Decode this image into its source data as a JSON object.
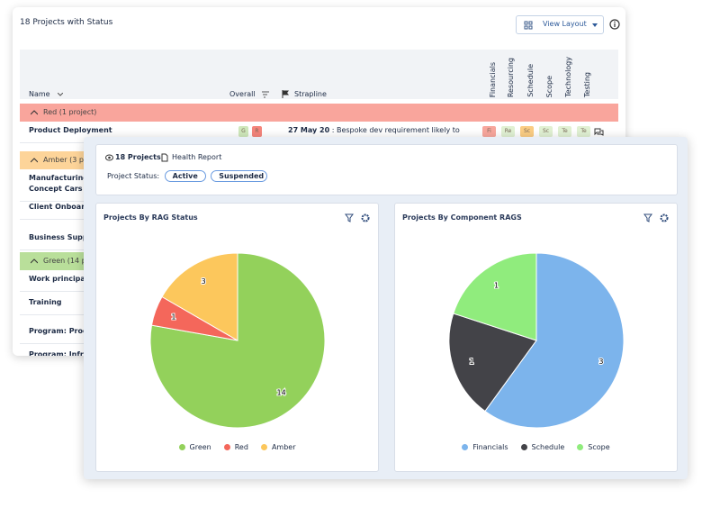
{
  "list": {
    "title": "18 Projects with Status",
    "button": "View Layout",
    "columns": {
      "name": "Name",
      "overall": "Overall",
      "strapline": "Strapline",
      "components": [
        "Financials",
        "Resourcing",
        "Schedule",
        "Scope",
        "Technology",
        "Testing"
      ]
    },
    "groups": [
      {
        "label": "Red (1 project)",
        "color": "#f9a59c",
        "rows": [
          {
            "lines": [
              "Product Deployment"
            ],
            "overall": [
              {
                "text": "G",
                "color": "#cfe8bb"
              },
              {
                "text": "R",
                "color": "#f5857b"
              }
            ],
            "date": "27 May 20",
            "strapline": ": Bespoke dev requirement likely to",
            "components": [
              {
                "text": "Fi",
                "color": "#f8a79d"
              },
              {
                "text": "Re",
                "color": "#e1f1d3"
              },
              {
                "text": "Sc",
                "color": "#fbcd84"
              },
              {
                "text": "Sc",
                "color": "#e1f1d3"
              },
              {
                "text": "Te",
                "color": "#e1f1d3"
              },
              {
                "text": "Te",
                "color": "#e1f1d3"
              }
            ]
          }
        ]
      },
      {
        "label": "Amber (3 p",
        "color": "#fdd499",
        "rows": [
          {
            "lines": [
              "Manufacturing:",
              "Concept Cars"
            ]
          },
          {
            "lines": [
              "Client Onboard"
            ]
          },
          {
            "lines": [
              "Business Supp"
            ]
          }
        ]
      },
      {
        "label": "Green (14 p",
        "color": "#b9df9a",
        "rows": [
          {
            "lines": [
              "Work principals"
            ]
          },
          {
            "lines": [
              "Training"
            ]
          },
          {
            "lines": [
              "Program: Produ"
            ]
          },
          {
            "lines": [
              "Program: Infra"
            ]
          }
        ]
      }
    ]
  },
  "report": {
    "tabs": [
      "18 Projects",
      "Health Report"
    ],
    "status_label": "Project Status:",
    "status_options": [
      "Active",
      "Suspended"
    ]
  },
  "chart_data": [
    {
      "type": "pie",
      "title": "Projects By RAG Status",
      "categories": [
        "Green",
        "Red",
        "Amber"
      ],
      "values": [
        14,
        1,
        3
      ],
      "colors": [
        "#93d15b",
        "#f4675b",
        "#fcc75c"
      ]
    },
    {
      "type": "pie",
      "title": "Projects By Component RAGS",
      "categories": [
        "Financials",
        "Schedule",
        "Scope"
      ],
      "values": [
        3,
        1,
        1
      ],
      "colors": [
        "#7cb4ec",
        "#434348",
        "#90ec7d"
      ]
    }
  ]
}
